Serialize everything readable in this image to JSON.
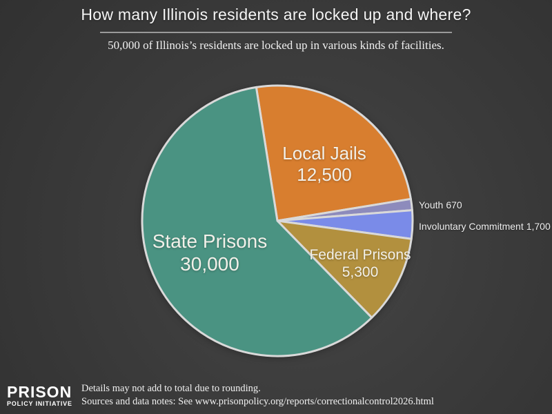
{
  "header": {
    "title": "How many Illinois residents are locked up and where?",
    "subtitle": "50,000 of Illinois’s residents are locked up in various kinds of facilities."
  },
  "chart_data": {
    "type": "pie",
    "title": "How many Illinois residents are locked up and where?",
    "total_label": "50,000",
    "start_angle_deg": -9,
    "direction": "clockwise",
    "stroke_color": "#d9d9d9",
    "slices": [
      {
        "label": "Local Jails",
        "value": 12500,
        "display_value": "12,500",
        "color": "#d87e2f"
      },
      {
        "label": "Youth",
        "value": 670,
        "display_value": "670",
        "color": "#8d8bbc"
      },
      {
        "label": "Involuntary Commitment",
        "value": 1700,
        "display_value": "1,700",
        "color": "#7a8be8"
      },
      {
        "label": "Federal Prisons",
        "value": 5300,
        "display_value": "5,300",
        "color": "#b2903e"
      },
      {
        "label": "State Prisons",
        "value": 30000,
        "display_value": "30,000",
        "color": "#4a9382"
      }
    ]
  },
  "footer": {
    "logo_line1": "PRISON",
    "logo_line2": "POLICY INITIATIVE",
    "note_line1": "Details may not add to total due to rounding.",
    "note_line2": "Sources and data notes: See www.prisonpolicy.org/reports/correctionalcontrol2026.html"
  }
}
